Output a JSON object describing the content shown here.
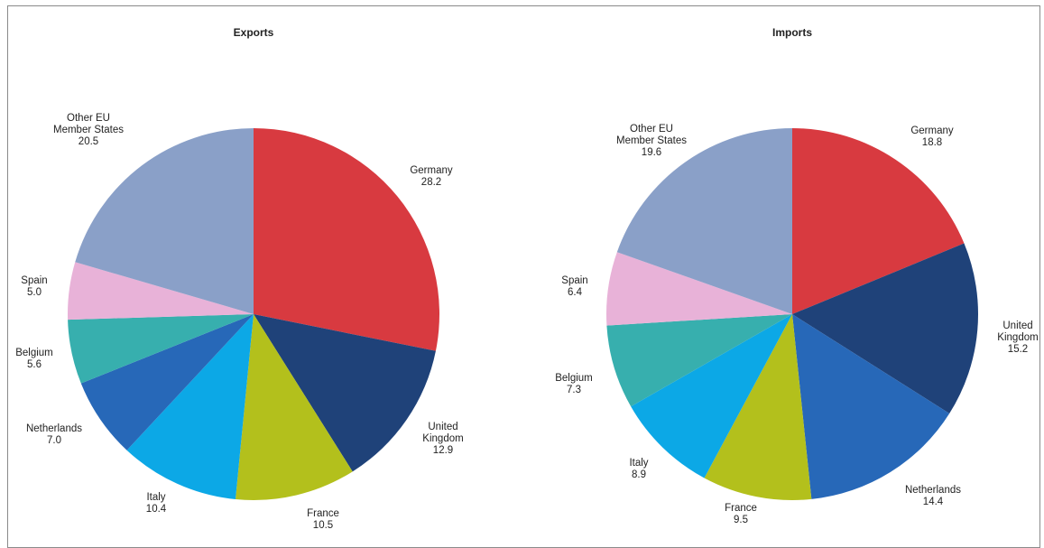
{
  "chart_data": [
    {
      "type": "pie",
      "title": "Exports",
      "slices": [
        {
          "label": "Germany",
          "value": 28.2,
          "color": "#d83a40"
        },
        {
          "label": "United Kingdom",
          "value": 12.9,
          "color": "#1f4279"
        },
        {
          "label": "France",
          "value": 10.5,
          "color": "#b3c01c"
        },
        {
          "label": "Italy",
          "value": 10.4,
          "color": "#0ca8e6"
        },
        {
          "label": "Netherlands",
          "value": 7.0,
          "color": "#2768b8"
        },
        {
          "label": "Belgium",
          "value": 5.6,
          "color": "#37afae"
        },
        {
          "label": "Spain",
          "value": 5.0,
          "color": "#e8b2d8"
        },
        {
          "label": "Other EU Member States",
          "value": 20.5,
          "color": "#8aa0c8"
        }
      ]
    },
    {
      "type": "pie",
      "title": "Imports",
      "slices": [
        {
          "label": "Germany",
          "value": 18.8,
          "color": "#d83a40"
        },
        {
          "label": "United Kingdom",
          "value": 15.2,
          "color": "#1f4279"
        },
        {
          "label": "Netherlands",
          "value": 14.4,
          "color": "#2768b8"
        },
        {
          "label": "France",
          "value": 9.5,
          "color": "#b3c01c"
        },
        {
          "label": "Italy",
          "value": 8.9,
          "color": "#0ca8e6"
        },
        {
          "label": "Belgium",
          "value": 7.3,
          "color": "#37afae"
        },
        {
          "label": "Spain",
          "value": 6.4,
          "color": "#e8b2d8"
        },
        {
          "label": "Other EU Member States",
          "value": 19.6,
          "color": "#8aa0c8"
        }
      ]
    }
  ],
  "label_lines": {
    "exports": [
      [
        "Germany",
        "28.2"
      ],
      [
        "United",
        "Kingdom",
        "12.9"
      ],
      [
        "France",
        "10.5"
      ],
      [
        "Italy",
        "10.4"
      ],
      [
        "Netherlands",
        "7.0"
      ],
      [
        "Belgium",
        "5.6"
      ],
      [
        "Spain",
        "5.0"
      ],
      [
        "Other EU",
        "Member States",
        "20.5"
      ]
    ],
    "imports": [
      [
        "Germany",
        "18.8"
      ],
      [
        "United",
        "Kingdom",
        "15.2"
      ],
      [
        "Netherlands",
        "14.4"
      ],
      [
        "France",
        "9.5"
      ],
      [
        "Italy",
        "8.9"
      ],
      [
        "Belgium",
        "7.3"
      ],
      [
        "Spain",
        "6.4"
      ],
      [
        "Other EU",
        "Member States",
        "19.6"
      ]
    ]
  }
}
